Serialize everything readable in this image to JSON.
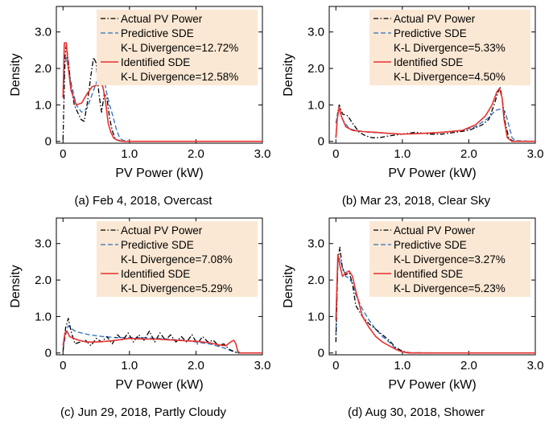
{
  "chart_data": [
    {
      "type": "line",
      "caption": "(a) Feb 4, 2018, Overcast",
      "xlabel": "PV Power (kW)",
      "ylabel": "Density",
      "xlim": [
        -0.1,
        3.0
      ],
      "ylim": [
        -0.05,
        3.7
      ],
      "xticks": [
        "0",
        "1.0",
        "2.0",
        "3.0"
      ],
      "yticks": [
        "0",
        "1.0",
        "2.0",
        "3.0"
      ],
      "legend_position": "top-right",
      "legend_lines": [
        "Actual PV Power",
        "Predictive SDE",
        "K-L Divergence=12.72%",
        "Identified SDE",
        "K-L Divergence=12.58%"
      ],
      "series": [
        {
          "name": "Actual PV Power",
          "style": "dashdot",
          "color": "#000000",
          "x": [
            0,
            0.03,
            0.05,
            0.08,
            0.12,
            0.17,
            0.22,
            0.27,
            0.32,
            0.37,
            0.42,
            0.46,
            0.5,
            0.54,
            0.58,
            0.62,
            0.66,
            0.7,
            0.74,
            0.78,
            0.82,
            0.86,
            0.9,
            1.0,
            1.5,
            2.0,
            2.5,
            3.0
          ],
          "y": [
            0.05,
            2.3,
            2.65,
            2.2,
            1.5,
            1.0,
            0.8,
            0.6,
            0.55,
            1.1,
            1.8,
            2.3,
            2.15,
            1.3,
            0.8,
            1.3,
            1.2,
            0.65,
            0.3,
            0.1,
            0.03,
            0.01,
            0,
            0,
            0,
            0,
            0,
            0
          ]
        },
        {
          "name": "Predictive SDE",
          "style": "dashed",
          "color": "#2e6fbd",
          "x": [
            0,
            0.03,
            0.05,
            0.08,
            0.12,
            0.2,
            0.28,
            0.36,
            0.44,
            0.52,
            0.58,
            0.62,
            0.66,
            0.7,
            0.75,
            0.8,
            0.85,
            0.9,
            1.0,
            1.5,
            2.0,
            2.5,
            3.0
          ],
          "y": [
            1.2,
            2.1,
            2.3,
            2.0,
            1.6,
            1.0,
            0.8,
            0.9,
            1.3,
            1.7,
            1.85,
            1.7,
            1.3,
            1.0,
            0.7,
            0.35,
            0.1,
            0.03,
            0,
            0,
            0,
            0,
            0
          ]
        },
        {
          "name": "Identified SDE",
          "style": "solid",
          "color": "#e8312f",
          "x": [
            0,
            0.02,
            0.05,
            0.08,
            0.12,
            0.2,
            0.28,
            0.36,
            0.44,
            0.52,
            0.56,
            0.6,
            0.64,
            0.68,
            0.72,
            0.76,
            0.8,
            0.85,
            0.9,
            1.0,
            1.5,
            2.0,
            2.5,
            3.0
          ],
          "y": [
            1.2,
            2.7,
            2.7,
            2.0,
            1.4,
            1.0,
            1.05,
            1.3,
            1.5,
            1.55,
            1.6,
            1.5,
            1.1,
            0.5,
            0.25,
            0.1,
            0.05,
            0.02,
            0,
            0,
            0,
            0,
            0,
            0
          ]
        }
      ]
    },
    {
      "type": "line",
      "caption": "(b) Mar 23, 2018, Clear Sky",
      "xlabel": "PV Power (kW)",
      "ylabel": "Density",
      "xlim": [
        -0.1,
        3.0
      ],
      "ylim": [
        -0.05,
        3.7
      ],
      "xticks": [
        "0",
        "1.0",
        "2.0",
        "3.0"
      ],
      "yticks": [
        "0",
        "1.0",
        "2.0",
        "3.0"
      ],
      "legend_position": "top-right",
      "legend_lines": [
        "Actual PV Power",
        "Predictive SDE",
        "K-L Divergence=5.33%",
        "Identified SDE",
        "K-L Divergence=4.50%"
      ],
      "series": [
        {
          "name": "Actual PV Power",
          "style": "dashdot",
          "color": "#000000",
          "x": [
            0,
            0.03,
            0.05,
            0.1,
            0.18,
            0.25,
            0.35,
            0.45,
            0.55,
            0.65,
            0.8,
            1.0,
            1.2,
            1.4,
            1.6,
            1.8,
            2.0,
            2.2,
            2.3,
            2.38,
            2.43,
            2.47,
            2.5,
            2.55,
            2.6,
            2.65,
            2.7,
            3.0
          ],
          "y": [
            0.1,
            0.8,
            1.0,
            0.75,
            0.7,
            0.5,
            0.25,
            0.15,
            0.1,
            0.1,
            0.15,
            0.2,
            0.25,
            0.2,
            0.2,
            0.25,
            0.3,
            0.45,
            0.6,
            1.0,
            1.3,
            1.5,
            1.2,
            0.5,
            0.1,
            0.02,
            0,
            0
          ]
        },
        {
          "name": "Predictive SDE",
          "style": "dashed",
          "color": "#2e6fbd",
          "x": [
            0,
            0.03,
            0.06,
            0.1,
            0.2,
            0.3,
            0.5,
            0.8,
            1.0,
            1.3,
            1.6,
            1.9,
            2.1,
            2.3,
            2.4,
            2.5,
            2.55,
            2.6,
            2.65,
            2.7,
            3.0
          ],
          "y": [
            0.5,
            0.8,
            0.85,
            0.6,
            0.35,
            0.3,
            0.25,
            0.22,
            0.2,
            0.22,
            0.25,
            0.3,
            0.4,
            0.65,
            0.85,
            0.9,
            0.8,
            0.45,
            0.1,
            0.02,
            0
          ]
        },
        {
          "name": "Identified SDE",
          "style": "solid",
          "color": "#e8312f",
          "x": [
            0,
            0.02,
            0.05,
            0.08,
            0.15,
            0.25,
            0.4,
            0.6,
            0.8,
            1.0,
            1.3,
            1.6,
            1.9,
            2.1,
            2.25,
            2.35,
            2.42,
            2.46,
            2.5,
            2.53,
            2.58,
            2.65,
            3.0
          ],
          "y": [
            0.1,
            0.6,
            0.95,
            0.7,
            0.4,
            0.3,
            0.27,
            0.25,
            0.22,
            0.2,
            0.22,
            0.25,
            0.3,
            0.45,
            0.7,
            1.0,
            1.35,
            1.45,
            1.2,
            0.6,
            0.1,
            0,
            0
          ]
        }
      ]
    },
    {
      "type": "line",
      "caption": "(c) Jun 29, 2018, Partly Cloudy",
      "xlabel": "PV Power (kW)",
      "ylabel": "Density",
      "xlim": [
        -0.1,
        3.0
      ],
      "ylim": [
        -0.05,
        3.7
      ],
      "xticks": [
        "0",
        "1.0",
        "2.0",
        "3.0"
      ],
      "yticks": [
        "0",
        "1.0",
        "2.0",
        "3.0"
      ],
      "legend_position": "top-right",
      "legend_lines": [
        "Actual PV Power",
        "Predictive SDE",
        "K-L Divergence=7.08%",
        "Identified SDE",
        "K-L Divergence=5.29%"
      ],
      "series": [
        {
          "name": "Actual PV Power",
          "style": "dashdot",
          "color": "#000000",
          "x": [
            0,
            0.04,
            0.08,
            0.12,
            0.18,
            0.26,
            0.34,
            0.42,
            0.5,
            0.58,
            0.66,
            0.74,
            0.82,
            0.9,
            0.98,
            1.06,
            1.14,
            1.22,
            1.3,
            1.38,
            1.46,
            1.54,
            1.62,
            1.7,
            1.78,
            1.86,
            1.94,
            2.02,
            2.1,
            2.18,
            2.26,
            2.34,
            2.42,
            2.5,
            2.56,
            2.62,
            3.0
          ],
          "y": [
            0.05,
            0.7,
            0.95,
            0.6,
            0.25,
            0.3,
            0.35,
            0.2,
            0.4,
            0.3,
            0.45,
            0.25,
            0.5,
            0.35,
            0.55,
            0.3,
            0.5,
            0.35,
            0.6,
            0.3,
            0.55,
            0.35,
            0.5,
            0.3,
            0.45,
            0.3,
            0.5,
            0.25,
            0.45,
            0.3,
            0.35,
            0.2,
            0.25,
            0.1,
            0.05,
            0,
            0
          ]
        },
        {
          "name": "Predictive SDE",
          "style": "dashed",
          "color": "#2e6fbd",
          "x": [
            0,
            0.04,
            0.08,
            0.14,
            0.2,
            0.4,
            0.6,
            0.8,
            1.0,
            1.2,
            1.4,
            1.6,
            1.8,
            2.0,
            2.2,
            2.4,
            2.5,
            2.58,
            2.64,
            2.7,
            3.0
          ],
          "y": [
            0.1,
            0.5,
            0.75,
            0.65,
            0.58,
            0.5,
            0.45,
            0.42,
            0.42,
            0.42,
            0.4,
            0.38,
            0.35,
            0.3,
            0.25,
            0.15,
            0.08,
            0.03,
            0.01,
            0,
            0
          ]
        },
        {
          "name": "Identified SDE",
          "style": "solid",
          "color": "#e8312f",
          "x": [
            0,
            0.03,
            0.06,
            0.1,
            0.16,
            0.24,
            0.35,
            0.5,
            0.65,
            0.8,
            1.0,
            1.2,
            1.4,
            1.6,
            1.8,
            2.0,
            2.2,
            2.35,
            2.45,
            2.52,
            2.57,
            2.6,
            2.63,
            2.66,
            3.0
          ],
          "y": [
            0.2,
            0.55,
            0.6,
            0.45,
            0.4,
            0.35,
            0.3,
            0.3,
            0.32,
            0.35,
            0.4,
            0.38,
            0.38,
            0.36,
            0.34,
            0.32,
            0.28,
            0.22,
            0.2,
            0.3,
            0.35,
            0.25,
            0.05,
            0,
            0
          ]
        }
      ]
    },
    {
      "type": "line",
      "caption": "(d) Aug 30, 2018, Shower",
      "xlabel": "PV Power (kW)",
      "ylabel": "Density",
      "xlim": [
        -0.1,
        3.0
      ],
      "ylim": [
        -0.05,
        3.7
      ],
      "xticks": [
        "0",
        "1.0",
        "2.0",
        "3.0"
      ],
      "yticks": [
        "0",
        "1.0",
        "2.0",
        "3.0"
      ],
      "legend_position": "top-right",
      "legend_lines": [
        "Actual PV Power",
        "Predictive SDE",
        "K-L Divergence=3.27%",
        "Identified SDE",
        "K-L Divergence=5.23%"
      ],
      "series": [
        {
          "name": "Actual PV Power",
          "style": "dashdot",
          "color": "#000000",
          "x": [
            0,
            0.03,
            0.06,
            0.1,
            0.15,
            0.2,
            0.25,
            0.3,
            0.4,
            0.5,
            0.6,
            0.7,
            0.8,
            0.9,
            1.0,
            1.1,
            1.5,
            2.0,
            2.5,
            3.0
          ],
          "y": [
            0.3,
            2.5,
            2.9,
            2.3,
            2.15,
            2.2,
            1.9,
            1.3,
            1.0,
            0.8,
            0.65,
            0.5,
            0.35,
            0.15,
            0.05,
            0.01,
            0,
            0,
            0,
            0
          ]
        },
        {
          "name": "Predictive SDE",
          "style": "dashed",
          "color": "#2e6fbd",
          "x": [
            0,
            0.03,
            0.06,
            0.1,
            0.15,
            0.2,
            0.25,
            0.3,
            0.4,
            0.5,
            0.6,
            0.7,
            0.8,
            0.9,
            1.0,
            1.1,
            1.5,
            2.0,
            2.5,
            3.0
          ],
          "y": [
            0.5,
            2.4,
            2.6,
            2.35,
            2.1,
            2.05,
            1.9,
            1.6,
            1.2,
            0.9,
            0.65,
            0.45,
            0.3,
            0.12,
            0.04,
            0,
            0,
            0,
            0,
            0
          ]
        },
        {
          "name": "Identified SDE",
          "style": "solid",
          "color": "#e8312f",
          "x": [
            0,
            0.03,
            0.06,
            0.1,
            0.15,
            0.2,
            0.25,
            0.3,
            0.4,
            0.5,
            0.6,
            0.7,
            0.8,
            0.9,
            1.0,
            1.1,
            1.5,
            2.0,
            2.5,
            3.0
          ],
          "y": [
            0.9,
            2.7,
            2.4,
            2.1,
            2.2,
            2.25,
            2.1,
            1.7,
            1.0,
            0.7,
            0.45,
            0.3,
            0.2,
            0.1,
            0.03,
            0,
            0,
            0,
            0,
            0
          ]
        }
      ]
    }
  ],
  "colors": {
    "actual": "#000000",
    "predictive": "#2e6fbd",
    "identified": "#e8312f",
    "legend_background": "#fbe8d4"
  }
}
